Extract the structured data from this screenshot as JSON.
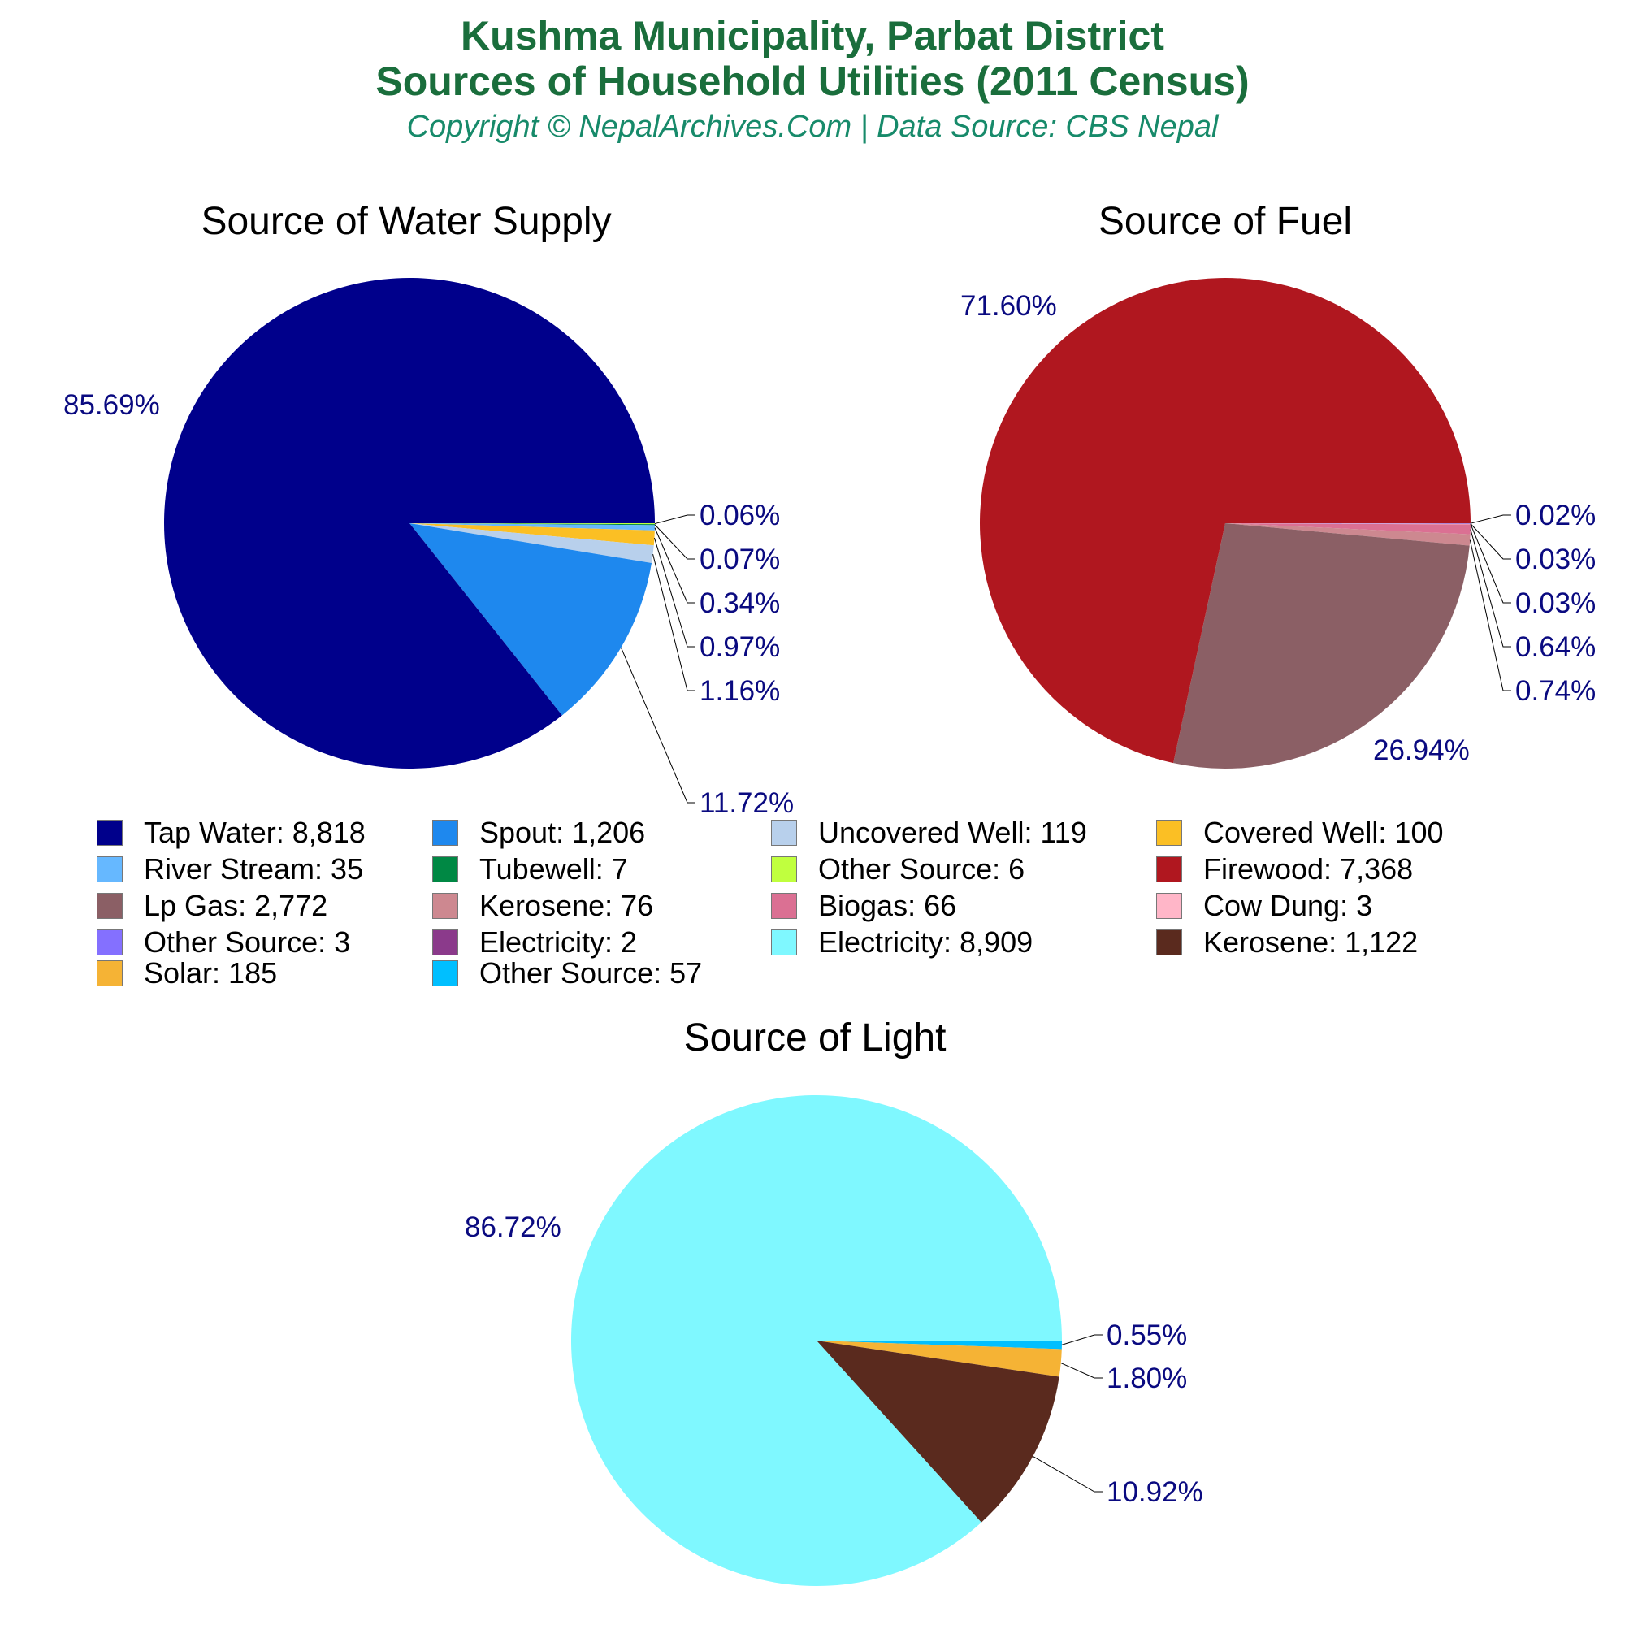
{
  "header": {
    "title_line1": "Kushma Municipality, Parbat District",
    "title_line2": "Sources of Household Utilities (2011 Census)",
    "subtitle": "Copyright © NepalArchives.Com | Data Source: CBS Nepal"
  },
  "panels": {
    "water": {
      "title": "Source of Water Supply"
    },
    "fuel": {
      "title": "Source of Fuel"
    },
    "light": {
      "title": "Source of Light"
    }
  },
  "legend": [
    {
      "label": "Tap Water: 8,818",
      "color": "#00008b"
    },
    {
      "label": "Spout: 1,206",
      "color": "#1e88ee"
    },
    {
      "label": "Uncovered Well: 119",
      "color": "#b8d0ec"
    },
    {
      "label": "Covered Well: 100",
      "color": "#fbbf24"
    },
    {
      "label": "River Stream: 35",
      "color": "#66b8ff"
    },
    {
      "label": "Tubewell: 7",
      "color": "#008844"
    },
    {
      "label": "Other Source: 6",
      "color": "#c0ff3e"
    },
    {
      "label": "Firewood: 7,368",
      "color": "#b0171f"
    },
    {
      "label": "Lp Gas: 2,772",
      "color": "#8b5f65"
    },
    {
      "label": "Kerosene: 76",
      "color": "#cd8890"
    },
    {
      "label": "Biogas: 66",
      "color": "#db7093"
    },
    {
      "label": "Cow Dung: 3",
      "color": "#ffb6c8"
    },
    {
      "label": "Other Source: 3",
      "color": "#8470ff"
    },
    {
      "label": "Electricity: 2",
      "color": "#8b3a8b"
    },
    {
      "label": "Electricity: 8,909",
      "color": "#7ff8ff"
    },
    {
      "label": "Kerosene: 1,122",
      "color": "#5a2a1e"
    },
    {
      "label": "Solar: 185",
      "color": "#f5b335"
    },
    {
      "label": "Other Source: 57",
      "color": "#00bfff"
    }
  ],
  "chart_data": [
    {
      "type": "pie",
      "title": "Source of Water Supply",
      "categories": [
        "Tap Water",
        "Spout",
        "Uncovered Well",
        "Covered Well",
        "River Stream",
        "Tubewell",
        "Other Source"
      ],
      "values": [
        8818,
        1206,
        119,
        100,
        35,
        7,
        6
      ],
      "percent_labels": [
        "85.69%",
        "11.72%",
        "1.16%",
        "0.97%",
        "0.34%",
        "0.07%",
        "0.06%"
      ],
      "colors": [
        "#00008b",
        "#1e88ee",
        "#b8d0ec",
        "#fbbf24",
        "#66b8ff",
        "#008844",
        "#c0ff3e"
      ]
    },
    {
      "type": "pie",
      "title": "Source of Fuel",
      "categories": [
        "Firewood",
        "Lp Gas",
        "Kerosene",
        "Biogas",
        "Cow Dung",
        "Other Source",
        "Electricity"
      ],
      "values": [
        7368,
        2772,
        76,
        66,
        3,
        3,
        2
      ],
      "percent_labels": [
        "71.60%",
        "26.94%",
        "0.74%",
        "0.64%",
        "0.03%",
        "0.03%",
        "0.02%"
      ],
      "colors": [
        "#b0171f",
        "#8b5f65",
        "#cd8890",
        "#db7093",
        "#ffb6c8",
        "#8470ff",
        "#8b3a8b"
      ]
    },
    {
      "type": "pie",
      "title": "Source of Light",
      "categories": [
        "Electricity",
        "Kerosene",
        "Solar",
        "Other Source"
      ],
      "values": [
        8909,
        1122,
        185,
        57
      ],
      "percent_labels": [
        "86.72%",
        "10.92%",
        "1.80%",
        "0.55%"
      ],
      "colors": [
        "#7ff8ff",
        "#5a2a1e",
        "#f5b335",
        "#00bfff"
      ]
    }
  ]
}
